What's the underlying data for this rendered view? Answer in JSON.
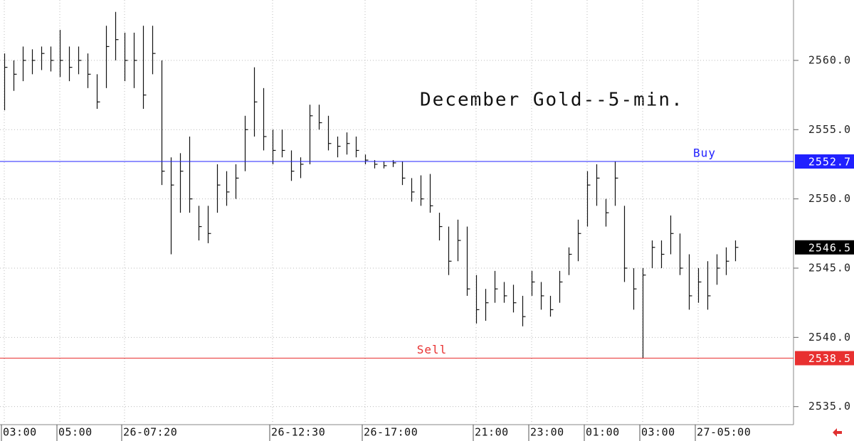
{
  "chart_data": {
    "type": "ohlc",
    "title": "December Gold--5-min.",
    "categories": [
      "03:00",
      null,
      null,
      null,
      null,
      null,
      "05:00",
      null,
      null,
      null,
      null,
      null,
      null,
      "26-07:20",
      null,
      null,
      null,
      null,
      null,
      null,
      null,
      null,
      null,
      null,
      null,
      null,
      null,
      null,
      null,
      "26-12:30",
      null,
      null,
      null,
      null,
      null,
      null,
      null,
      null,
      null,
      "26-17:00",
      null,
      null,
      null,
      null,
      null,
      null,
      null,
      null,
      null,
      null,
      null,
      "21:00",
      null,
      null,
      null,
      null,
      null,
      "23:00",
      null,
      null,
      null,
      null,
      null,
      "01:00",
      null,
      null,
      null,
      null,
      null,
      "03:00",
      null,
      null,
      null,
      null,
      null,
      "27-05:00",
      null,
      null,
      null,
      null
    ],
    "high": [
      2560.5,
      2560.0,
      2561.0,
      2560.8,
      2561.0,
      2561.0,
      2562.2,
      2561.0,
      2561.0,
      2560.5,
      2559.0,
      2562.5,
      2563.5,
      2562.0,
      2562.0,
      2562.5,
      2562.5,
      2560.0,
      2553.0,
      2553.3,
      2554.5,
      2549.5,
      2549.5,
      2552.5,
      2552.0,
      2552.5,
      2556.0,
      2559.5,
      2558.0,
      2555.0,
      2555.0,
      2553.5,
      2553.0,
      2556.8,
      2556.8,
      2556.0,
      2554.5,
      2554.8,
      2554.5,
      2553.2,
      2552.8,
      2552.7,
      2552.8,
      2552.7,
      2551.5,
      2551.7,
      2551.8,
      2549.0,
      2548.0,
      2548.5,
      2548.0,
      2544.5,
      2543.5,
      2544.8,
      2544.0,
      2543.8,
      2543.0,
      2544.8,
      2544.0,
      2543.0,
      2544.8,
      2546.5,
      2548.5,
      2552.0,
      2552.5,
      2550.0,
      2552.7,
      2549.5,
      2545.0,
      2545.0,
      2547.0,
      2547.0,
      2548.8,
      2547.5,
      2546.0,
      2545.0,
      2545.5,
      2546.0,
      2546.5,
      2547.0
    ],
    "low": [
      2556.4,
      2557.8,
      2558.5,
      2559.0,
      2559.3,
      2559.2,
      2558.8,
      2558.5,
      2559.0,
      2558.0,
      2556.5,
      2558.0,
      2560.0,
      2558.5,
      2558.0,
      2556.5,
      2559.0,
      2551.0,
      2546.0,
      2549.0,
      2549.0,
      2547.0,
      2546.8,
      2549.0,
      2549.5,
      2550.0,
      2552.0,
      2554.5,
      2553.5,
      2552.5,
      2553.0,
      2551.3,
      2551.5,
      2552.5,
      2555.0,
      2553.5,
      2553.0,
      2553.2,
      2553.0,
      2552.5,
      2552.2,
      2552.2,
      2552.3,
      2551.0,
      2549.8,
      2549.5,
      2549.0,
      2547.0,
      2544.5,
      2545.5,
      2543.0,
      2541.0,
      2541.2,
      2542.5,
      2542.5,
      2541.8,
      2540.8,
      2543.0,
      2542.0,
      2541.5,
      2542.5,
      2544.5,
      2545.5,
      2548.0,
      2549.5,
      2548.0,
      2549.5,
      2544.0,
      2542.0,
      2538.5,
      2545.0,
      2545.0,
      2546.0,
      2544.5,
      2542.0,
      2542.5,
      2542.0,
      2543.8,
      2544.5,
      2545.5
    ],
    "close": [
      2559.5,
      2559.0,
      2560.0,
      2560.0,
      2560.5,
      2560.0,
      2560.0,
      2559.5,
      2560.0,
      2559.0,
      2557.0,
      2561.0,
      2561.5,
      2560.0,
      2560.0,
      2557.5,
      2560.5,
      2552.0,
      2551.0,
      2552.0,
      2550.0,
      2548.0,
      2547.5,
      2551.0,
      2550.5,
      2551.5,
      2555.0,
      2557.0,
      2554.5,
      2553.5,
      2553.5,
      2552.0,
      2552.5,
      2556.0,
      2555.5,
      2554.0,
      2553.8,
      2554.0,
      2553.5,
      2552.8,
      2552.5,
      2552.4,
      2552.6,
      2551.5,
      2550.5,
      2550.0,
      2549.5,
      2548.0,
      2545.5,
      2547.0,
      2543.5,
      2542.0,
      2542.5,
      2543.5,
      2543.0,
      2542.5,
      2541.5,
      2544.0,
      2543.0,
      2542.0,
      2544.0,
      2546.0,
      2547.5,
      2551.0,
      2551.5,
      2549.0,
      2551.5,
      2545.0,
      2543.5,
      2544.5,
      2546.5,
      2546.0,
      2547.5,
      2545.0,
      2543.0,
      2544.0,
      2543.0,
      2545.0,
      2545.5,
      2546.5
    ],
    "color": "#111111",
    "ylim": [
      2533.7,
      2564.36
    ],
    "yticks": [
      {
        "value": 2535,
        "label": "2535.0"
      },
      {
        "value": 2540,
        "label": "2540.0"
      },
      {
        "value": 2545,
        "label": "2545.0"
      },
      {
        "value": 2550,
        "label": "2550.0"
      },
      {
        "value": 2555,
        "label": "2555.0"
      },
      {
        "value": 2560,
        "label": "2560.0"
      }
    ],
    "grid": true,
    "lines": [
      {
        "label": "Buy",
        "value": 2552.7,
        "color": "#2020ff"
      },
      {
        "label": "Sell",
        "value": 2538.5,
        "color": "#e83030"
      }
    ],
    "last_price": 2546.5
  }
}
